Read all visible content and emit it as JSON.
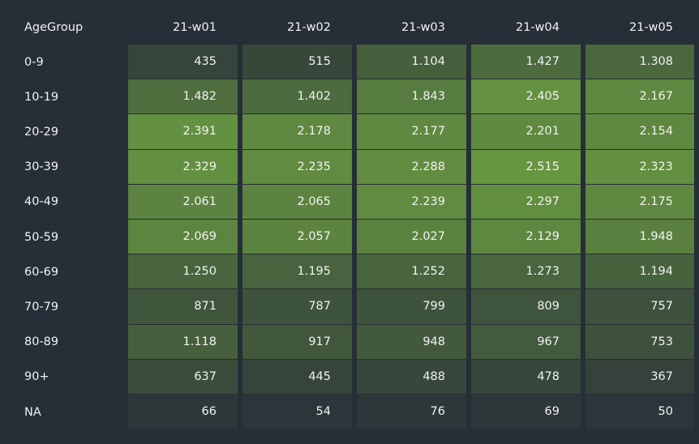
{
  "chart_data": {
    "type": "heatmap",
    "corner_label": "AgeGroup",
    "columns": [
      "21-w01",
      "21-w02",
      "21-w03",
      "21-w04",
      "21-w05"
    ],
    "rows": [
      "0-9",
      "10-19",
      "20-29",
      "30-39",
      "40-49",
      "50-59",
      "60-69",
      "70-79",
      "80-89",
      "90+",
      "NA"
    ],
    "values": [
      [
        435,
        515,
        1104,
        1427,
        1308
      ],
      [
        1482,
        1402,
        1843,
        2405,
        2167
      ],
      [
        2391,
        2178,
        2177,
        2201,
        2154
      ],
      [
        2329,
        2235,
        2288,
        2515,
        2323
      ],
      [
        2061,
        2065,
        2239,
        2297,
        2175
      ],
      [
        2069,
        2057,
        2027,
        2129,
        1948
      ],
      [
        1250,
        1195,
        1252,
        1273,
        1194
      ],
      [
        871,
        787,
        799,
        809,
        757
      ],
      [
        1118,
        917,
        948,
        967,
        753
      ],
      [
        637,
        445,
        488,
        478,
        367
      ],
      [
        66,
        54,
        76,
        69,
        50
      ]
    ],
    "display": [
      [
        "435",
        "515",
        "1.104",
        "1.427",
        "1.308"
      ],
      [
        "1.482",
        "1.402",
        "1.843",
        "2.405",
        "2.167"
      ],
      [
        "2.391",
        "2.178",
        "2.177",
        "2.201",
        "2.154"
      ],
      [
        "2.329",
        "2.235",
        "2.288",
        "2.515",
        "2.323"
      ],
      [
        "2.061",
        "2.065",
        "2.239",
        "2.297",
        "2.175"
      ],
      [
        "2.069",
        "2.057",
        "2.027",
        "2.129",
        "1.948"
      ],
      [
        "1.250",
        "1.195",
        "1.252",
        "1.273",
        "1.194"
      ],
      [
        "871",
        "787",
        "799",
        "809",
        "757"
      ],
      [
        "1.118",
        "917",
        "948",
        "967",
        "753"
      ],
      [
        "637",
        "445",
        "488",
        "478",
        "367"
      ],
      [
        "66",
        "54",
        "76",
        "69",
        "50"
      ]
    ],
    "color_scale": {
      "low": "#2b343a",
      "high": "#679641",
      "min": 0,
      "max": 2515
    },
    "background": "#262e37",
    "text_color": "#f2f2f2"
  }
}
